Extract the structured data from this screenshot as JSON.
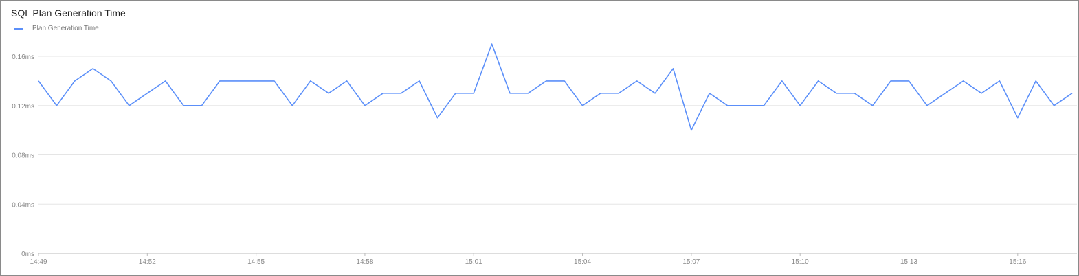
{
  "chart_data": {
    "type": "line",
    "title": "SQL Plan Generation Time",
    "xlabel": "",
    "ylabel": "",
    "legend_placement": "top-left",
    "grid": true,
    "series_color": "#5b8ff9",
    "ylim": [
      0,
      0.16
    ],
    "y_unit": "ms",
    "y_ticks": [
      "0ms",
      "0.04ms",
      "0.08ms",
      "0.12ms",
      "0.16ms"
    ],
    "y_tick_values": [
      0,
      0.04,
      0.08,
      0.12,
      0.16
    ],
    "x_ticks": [
      "14:49",
      "14:52",
      "14:55",
      "14:58",
      "15:01",
      "15:04",
      "15:07",
      "15:10",
      "15:13",
      "15:16"
    ],
    "xlim": [
      "14:49:00",
      "15:17:38"
    ],
    "x_start": "14:49:00",
    "x_interval_seconds": 30,
    "series": [
      {
        "name": "Plan Generation Time",
        "values": [
          0.14,
          0.12,
          0.14,
          0.15,
          0.14,
          0.12,
          0.13,
          0.14,
          0.12,
          0.12,
          0.14,
          0.14,
          0.14,
          0.14,
          0.12,
          0.14,
          0.13,
          0.14,
          0.12,
          0.13,
          0.13,
          0.14,
          0.11,
          0.13,
          0.13,
          0.17,
          0.13,
          0.13,
          0.14,
          0.14,
          0.12,
          0.13,
          0.13,
          0.14,
          0.13,
          0.15,
          0.1,
          0.13,
          0.12,
          0.12,
          0.12,
          0.14,
          0.12,
          0.14,
          0.13,
          0.13,
          0.12,
          0.14,
          0.14,
          0.12,
          0.13,
          0.14,
          0.13,
          0.14,
          0.11,
          0.14,
          0.12,
          0.13
        ]
      }
    ]
  }
}
